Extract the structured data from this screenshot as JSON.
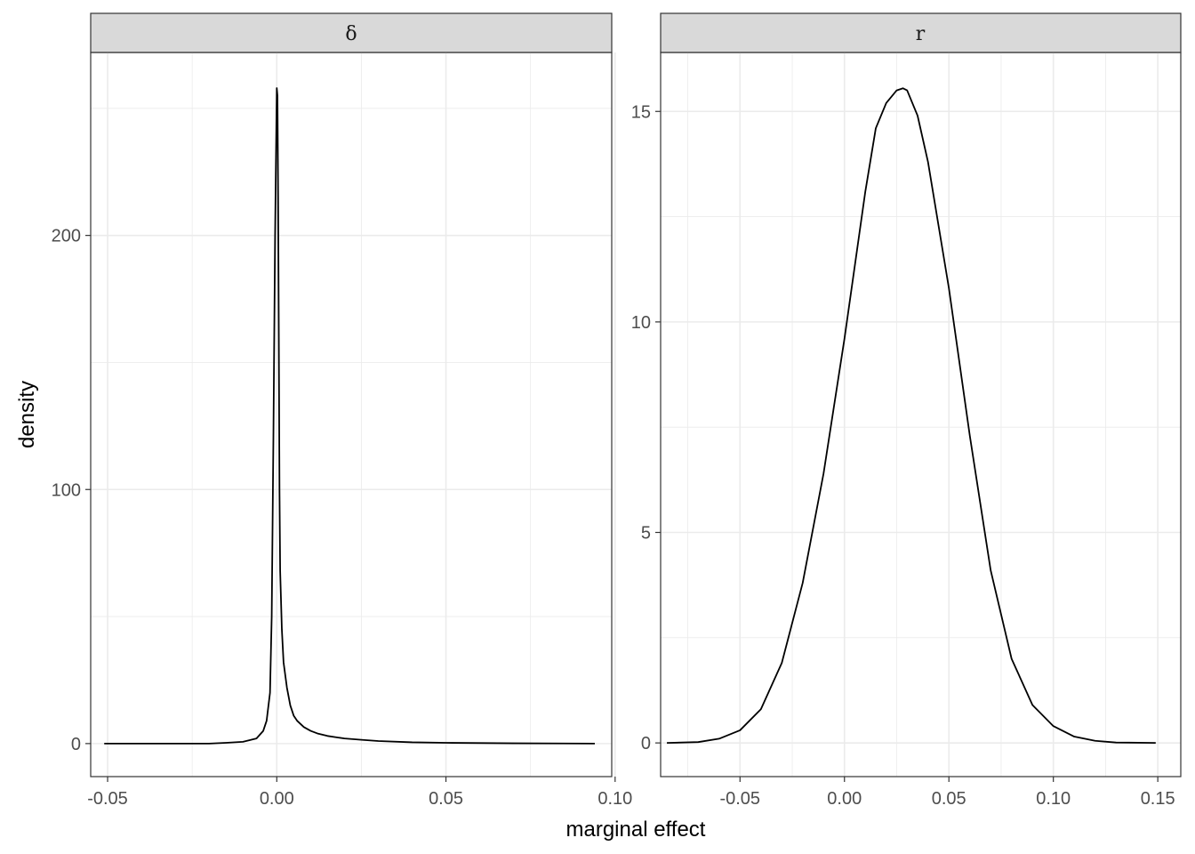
{
  "chart_data": {
    "type": "line",
    "xlabel": "marginal effect",
    "ylabel": "density",
    "colors": {
      "line": "#000000",
      "grid": "#ebebeb",
      "strip_fill": "#d9d9d9",
      "border": "#333333"
    },
    "panels": [
      {
        "strip": "δ",
        "xlim": [
          -0.055,
          0.099
        ],
        "ylim": [
          -13,
          272
        ],
        "x_ticks": [
          -0.05,
          0.0,
          0.05,
          0.1
        ],
        "x_tick_labels": [
          "-0.05",
          "0.00",
          "0.05",
          "0.10"
        ],
        "y_ticks": [
          0,
          100,
          200
        ],
        "y_tick_labels": [
          "0",
          "100",
          "200"
        ],
        "series": [
          {
            "x": [
              -0.051,
              -0.02,
              -0.015,
              -0.01,
              -0.006,
              -0.004,
              -0.003,
              -0.002,
              -0.0015,
              -0.001,
              -0.0005,
              0.0,
              0.0002,
              0.0004,
              0.0006,
              0.0008,
              0.001,
              0.0015,
              0.002,
              0.003,
              0.004,
              0.005,
              0.006,
              0.008,
              0.01,
              0.012,
              0.015,
              0.02,
              0.025,
              0.03,
              0.04,
              0.05,
              0.07,
              0.094
            ],
            "y": [
              0,
              0,
              0.3,
              0.7,
              2,
              5,
              9,
              20,
              50,
              120,
              200,
              258,
              255,
              215,
              160,
              100,
              68,
              45,
              32,
              22,
              15,
              11,
              9,
              6.5,
              5,
              4,
              3,
              2,
              1.5,
              1,
              0.5,
              0.3,
              0.1,
              0
            ]
          }
        ]
      },
      {
        "strip": "r",
        "xlim": [
          -0.088,
          0.161
        ],
        "ylim": [
          -0.8,
          16.4
        ],
        "x_ticks": [
          -0.05,
          0.0,
          0.05,
          0.1,
          0.15
        ],
        "x_tick_labels": [
          "-0.05",
          "0.00",
          "0.05",
          "0.10",
          "0.15"
        ],
        "y_ticks": [
          0,
          5,
          10,
          15
        ],
        "y_tick_labels": [
          "0",
          "5",
          "10",
          "15"
        ],
        "series": [
          {
            "x": [
              -0.085,
              -0.07,
              -0.06,
              -0.05,
              -0.04,
              -0.03,
              -0.02,
              -0.01,
              0.0,
              0.01,
              0.015,
              0.02,
              0.025,
              0.028,
              0.03,
              0.035,
              0.04,
              0.05,
              0.06,
              0.07,
              0.08,
              0.09,
              0.1,
              0.11,
              0.12,
              0.13,
              0.149
            ],
            "y": [
              0,
              0.02,
              0.1,
              0.3,
              0.8,
              1.9,
              3.8,
              6.4,
              9.6,
              13.1,
              14.6,
              15.2,
              15.5,
              15.55,
              15.5,
              14.9,
              13.8,
              10.8,
              7.3,
              4.1,
              2.0,
              0.9,
              0.4,
              0.15,
              0.05,
              0.01,
              0
            ]
          }
        ]
      }
    ]
  }
}
